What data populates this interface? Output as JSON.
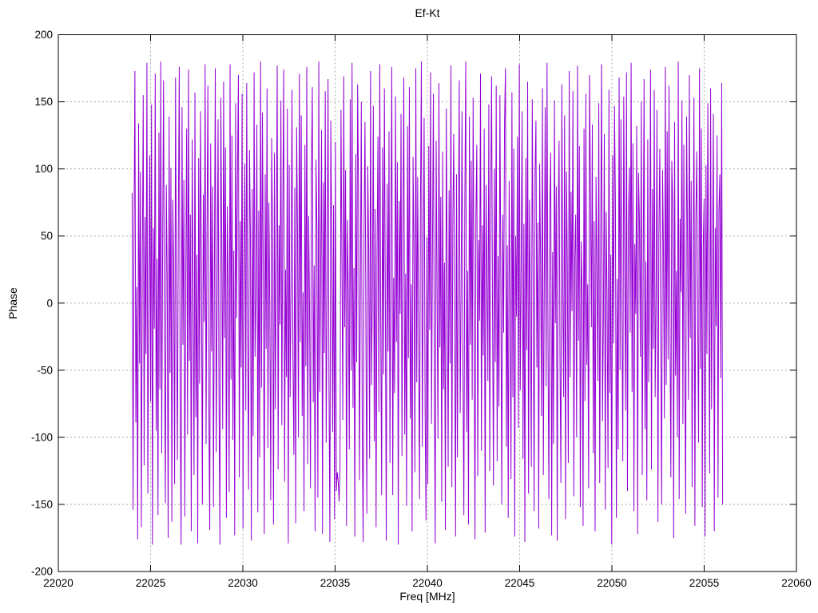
{
  "chart_data": {
    "type": "line",
    "title": "Ef-Kt",
    "xlabel": "Freq [MHz]",
    "ylabel": "Phase",
    "xlim": [
      22020,
      22060
    ],
    "ylim": [
      -200,
      200
    ],
    "x_ticks": [
      22020,
      22025,
      22030,
      22035,
      22040,
      22045,
      22050,
      22055,
      22060
    ],
    "y_ticks": [
      -200,
      -150,
      -100,
      -50,
      0,
      50,
      100,
      150,
      200
    ],
    "grid": true,
    "legend": "none",
    "line_color": "#9400D3",
    "grid_color": "#a8a8a8",
    "axis_color": "#000000",
    "background_color": "#ffffff",
    "series": [
      {
        "name": "phase",
        "x_start": 22024.0,
        "x_end": 22056.0,
        "y": [
          82,
          -154,
          47,
          173,
          -89,
          12,
          -176,
          134,
          -45,
          98,
          -167,
          23,
          155,
          -121,
          64,
          -38,
          179,
          -142,
          7,
          110,
          -73,
          148,
          -180,
          56,
          -19,
          171,
          -95,
          33,
          -158,
          127,
          -64,
          180,
          -112,
          41,
          166,
          -27,
          -149,
          88,
          15,
          -175,
          139,
          -52,
          101,
          -163,
          77,
          24,
          -135,
          168,
          -8,
          -117,
          59,
          176,
          -71,
          -180,
          146,
          -31,
          92,
          -159,
          18,
          130,
          -98,
          174,
          -43,
          66,
          -170,
          122,
          3,
          -128,
          157,
          -85,
          36,
          -179,
          108,
          -60,
          143,
          29,
          -150,
          81,
          -14,
          178,
          -105,
          50,
          162,
          -77,
          -169,
          119,
          -36,
          87,
          -152,
          21,
          175,
          -111,
          5,
          137,
          -68,
          -180,
          153,
          44,
          -94,
          165,
          -26,
          116,
          -160,
          72,
          9,
          -141,
          178,
          -57,
          125,
          -102,
          39,
          -173,
          149,
          -11,
          93,
          170,
          -130,
          61,
          -48,
          156,
          -168,
          30,
          104,
          -80,
          164,
          -22,
          -139,
          114,
          53,
          -177,
          85,
          -99,
          172,
          -40,
          6,
          133,
          -156,
          69,
          -115,
          180,
          -63,
          142,
          17,
          -172,
          96,
          -34,
          160,
          -108,
          75,
          -5,
          -147,
          123,
          48,
          -165,
          112,
          -79,
          35,
          177,
          -124,
          58,
          -16,
          151,
          -91,
          68,
          174,
          -133,
          25,
          -55,
          145,
          -179,
          103,
          -70,
          13,
          159,
          -42,
          -113,
          86,
          -164,
          131,
          52,
          -100,
          171,
          -29,
          140,
          -84,
          8,
          -155,
          118,
          -47,
          176,
          -120,
          65,
          -3,
          -138,
          97,
          161,
          -74,
          28,
          -170,
          107,
          54,
          -145,
          180,
          -66,
          21,
          129,
          -172,
          90,
          -37,
          158,
          -104,
          11,
          167,
          -58,
          -178,
          136,
          46,
          -96,
          73,
          -161,
          120,
          -140,
          -126,
          -133,
          -148,
          -122,
          144,
          32,
          -87,
          169,
          -18,
          99,
          -166,
          62,
          4,
          -109,
          152,
          -50,
          179,
          -78,
          26,
          -174,
          111,
          -44,
          163,
          83,
          -132,
          10,
          150,
          -92,
          -178,
          57,
          135,
          -25,
          -157,
          102,
          40,
          -116,
          173,
          -61,
          7,
          147,
          -103,
          70,
          -167,
          34,
          124,
          -81,
          178,
          -12,
          -143,
          116,
          -53,
          160,
          2,
          -177,
          89,
          -36,
          128,
          -119,
          45,
          176,
          -143,
          19,
          -67,
          154,
          -29,
          105,
          -180,
          76,
          -8,
          141,
          -114,
          51,
          168,
          -98,
          22,
          -151,
          132,
          -41,
          161,
          -86,
          14,
          -170,
          109,
          38,
          -126,
          175,
          -59,
          94,
          -17,
          -146,
          67,
          180,
          -107,
          27,
          138,
          -75,
          -162,
          49,
          -135,
          117,
          -20,
          172,
          -90,
          42,
          156,
          -54,
          -179,
          121,
          6,
          -101,
          164,
          -33,
          79,
          -148,
          113,
          -64,
          30,
          -169,
          145,
          16,
          -122,
          84,
          -45,
          177,
          -137,
          55,
          126,
          -6,
          -174,
          96,
          -115,
          37,
          166,
          -82,
          9,
          143,
          -52,
          -158,
          71,
          180,
          -96,
          24,
          -165,
          139,
          -31,
          106,
          -72,
          153,
          1,
          -176,
          63,
          118,
          -129,
          47,
          -13,
          171,
          -110,
          58,
          -39,
          130,
          -171,
          88,
          20,
          -58,
          148,
          -125,
          74,
          169,
          -5,
          -136,
          100,
          -44,
          162,
          -118,
          35,
          -77,
          155,
          12,
          -150,
          66,
          -22,
          134,
          175,
          -107,
          43,
          -160,
          91,
          3,
          -131,
          157,
          -70,
          115,
          -174,
          50,
          -10,
          124,
          -93,
          178,
          -65,
          28,
          143,
          -116,
          59,
          -178,
          108,
          -35,
          165,
          -142,
          77,
          -1,
          -122,
          152,
          19,
          -155,
          95,
          136,
          -48,
          60,
          -168,
          104,
          31,
          -84,
          160,
          -128,
          12,
          146,
          -62,
          179,
          -25,
          -146,
          70,
          112,
          -173,
          38,
          -105,
          151,
          -15,
          87,
          -177,
          53,
          121,
          -40,
          -134,
          163,
          8,
          -70,
          140,
          -161,
          98,
          26,
          -119,
          173,
          -55,
          83,
          -6,
          158,
          -144,
          34,
          66,
          -100,
          177,
          -28,
          117,
          -152,
          46,
          5,
          -166,
          130,
          -73,
          156,
          -46,
          14,
          -138,
          170,
          80,
          -18,
          133,
          -112,
          61,
          -170,
          94,
          23,
          -58,
          149,
          -134,
          41,
          178,
          -88,
          -10,
          126,
          -154,
          68,
          2,
          -123,
          159,
          -67,
          36,
          -180,
          110,
          -30,
          147,
          75,
          -160,
          18,
          -109,
          168,
          -50,
          137,
          -2,
          -118,
          154,
          29,
          -80,
          172,
          -140,
          55,
          101,
          -22,
          179,
          -66,
          119,
          -155,
          44,
          -8,
          132,
          -172,
          97,
          60,
          -40,
          150,
          -128,
          16,
          167,
          -94,
          31,
          -147,
          122,
          -59,
          11,
          174,
          -124,
          85,
          -34,
          159,
          -70,
          5,
          144,
          -163,
          50,
          115,
          -20,
          -150,
          99,
          37,
          -86,
          176,
          -61,
          128,
          -42,
          162,
          -15,
          -130,
          106,
          72,
          -175,
          135,
          -54,
          24,
          -100,
          180,
          -146,
          63,
          8,
          151,
          -90,
          118,
          -33,
          -157,
          139,
          48,
          -72,
          170,
          -26,
          91,
          -137,
          19,
          153,
          -166,
          62,
          113,
          -12,
          -104,
          175,
          -49,
          130,
          -152,
          41,
          78,
          -174,
          103,
          -38,
          149,
          10,
          -127,
          160,
          -79,
          27,
          141,
          -170,
          56,
          -17,
          125,
          -145,
          69,
          96,
          -56,
          164,
          -150
        ]
      }
    ]
  }
}
